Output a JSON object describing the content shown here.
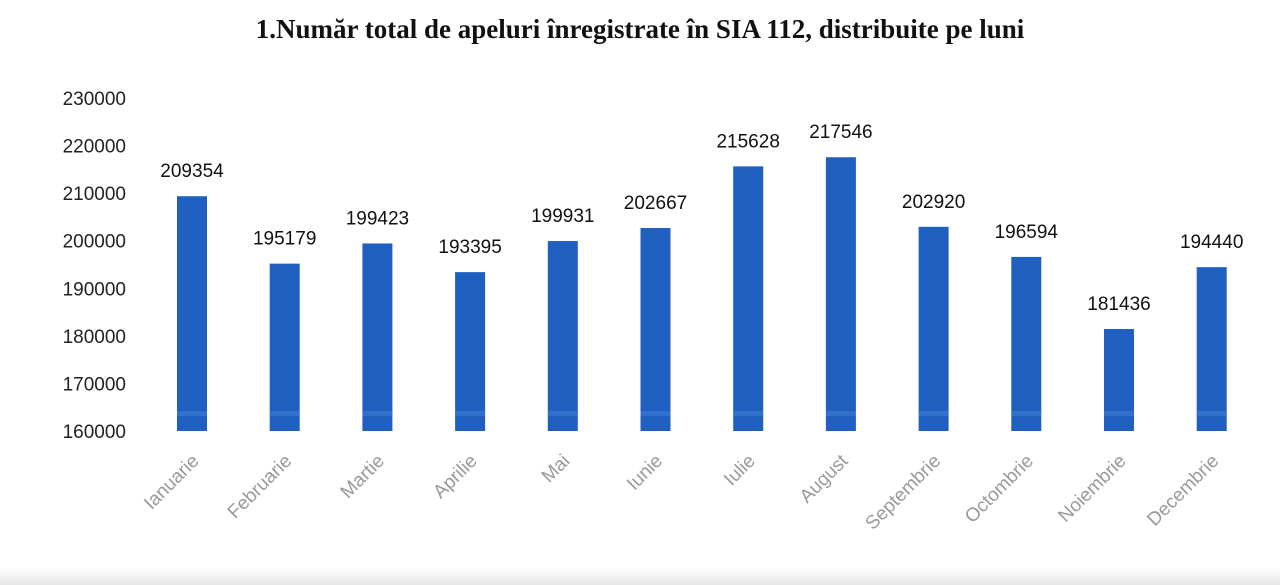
{
  "chart_data": {
    "type": "bar",
    "title": "1.Număr total de apeluri înregistrate în SIA 112, distribuite pe luni",
    "xlabel": "",
    "ylabel": "",
    "ylim": [
      160000,
      230000
    ],
    "yticks": [
      "230000",
      "220000",
      "210000",
      "200000",
      "190000",
      "180000",
      "170000",
      "160000"
    ],
    "grid": false,
    "legend": "none",
    "bar_color": "#1F5FBF",
    "categories": [
      "Ianuarie",
      "Februarie",
      "Martie",
      "Aprilie",
      "Mai",
      "Iunie",
      "Iulie",
      "August",
      "Septembrie",
      "Octombrie",
      "Noiembrie",
      "Decembrie"
    ],
    "values": [
      209354,
      195179,
      199423,
      193395,
      199931,
      202667,
      215628,
      217546,
      202920,
      196594,
      181436,
      194440
    ],
    "value_labels": [
      "209354",
      "195179",
      "199423",
      "193395",
      "199931",
      "202667",
      "215628",
      "217546",
      "202920",
      "196594",
      "181436",
      "194440"
    ]
  }
}
